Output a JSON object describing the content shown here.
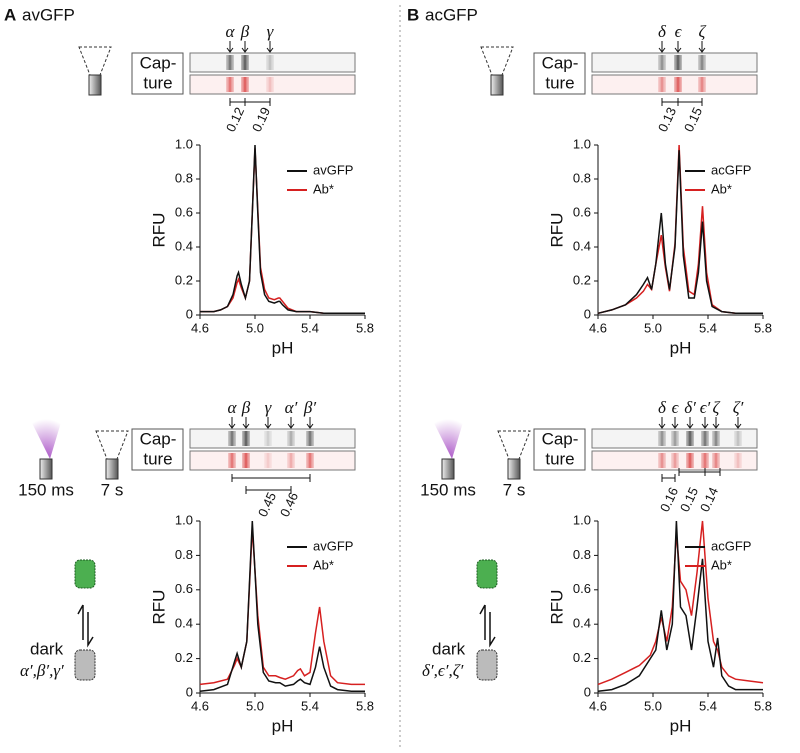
{
  "panels": [
    {
      "label": "A",
      "title": "avGFP",
      "dark_states": "α′,β′,γ′"
    },
    {
      "label": "B",
      "title": "acGFP",
      "dark_states": "δ′,ϵ′,ζ′"
    }
  ],
  "capture_label": [
    "Cap-",
    "ture"
  ],
  "flash_time": "150 ms",
  "capture_time": "7 s",
  "dark_label": "dark",
  "chart_data": [
    {
      "type": "line",
      "xlabel": "pH",
      "ylabel": "RFU",
      "xlim": [
        4.6,
        5.8
      ],
      "xticks": [
        4.6,
        {
          "value": 5,
          "label": "5.0"
        },
        5.4,
        5.8
      ],
      "ylim": [
        0,
        1
      ],
      "yticks": [
        0,
        0.2,
        0.4,
        0.6,
        0.8,
        {
          "value": 1,
          "label": "1.0"
        }
      ],
      "peaks": [
        "α",
        "β",
        "γ"
      ],
      "separations": [
        "0.12",
        "0.19"
      ],
      "x": [
        4.6,
        4.7,
        4.75,
        4.8,
        4.84,
        4.87,
        4.88,
        4.9,
        4.93,
        4.96,
        4.98,
        5.0,
        5.02,
        5.04,
        5.07,
        5.1,
        5.14,
        5.17,
        5.18,
        5.2,
        5.24,
        5.3,
        5.4,
        5.5,
        5.6,
        5.7,
        5.8
      ],
      "series": [
        {
          "name": "avGFP",
          "color": "#111111",
          "values": [
            0.02,
            0.02,
            0.03,
            0.05,
            0.12,
            0.23,
            0.25,
            0.18,
            0.1,
            0.2,
            0.6,
            1.0,
            0.6,
            0.25,
            0.12,
            0.08,
            0.07,
            0.08,
            0.08,
            0.06,
            0.03,
            0.02,
            0.02,
            0.01,
            0.01,
            0.01,
            0.01
          ]
        },
        {
          "name": "Ab*",
          "color": "#d62020",
          "values": [
            0.02,
            0.02,
            0.03,
            0.05,
            0.1,
            0.19,
            0.21,
            0.16,
            0.1,
            0.2,
            0.6,
            0.98,
            0.62,
            0.28,
            0.15,
            0.1,
            0.09,
            0.1,
            0.1,
            0.08,
            0.04,
            0.02,
            0.02,
            0.01,
            0.01,
            0.01,
            0.01
          ]
        }
      ]
    },
    {
      "type": "line",
      "xlabel": "pH",
      "ylabel": "RFU",
      "xlim": [
        4.6,
        5.8
      ],
      "xticks": [
        4.6,
        {
          "value": 5,
          "label": "5.0"
        },
        5.4,
        5.8
      ],
      "ylim": [
        0,
        1
      ],
      "yticks": [
        0,
        0.2,
        0.4,
        0.6,
        0.8,
        {
          "value": 1,
          "label": "1.0"
        }
      ],
      "peaks": [
        "δ",
        "ϵ",
        "ζ"
      ],
      "separations": [
        "0.13",
        "0.15"
      ],
      "x": [
        4.6,
        4.7,
        4.8,
        4.88,
        4.93,
        4.96,
        4.99,
        5.02,
        5.06,
        5.09,
        5.12,
        5.16,
        5.19,
        5.22,
        5.26,
        5.3,
        5.33,
        5.36,
        5.39,
        5.43,
        5.5,
        5.6,
        5.7,
        5.8
      ],
      "series": [
        {
          "name": "acGFP",
          "color": "#111111",
          "values": [
            0.01,
            0.03,
            0.06,
            0.12,
            0.18,
            0.22,
            0.15,
            0.3,
            0.6,
            0.3,
            0.15,
            0.4,
            0.97,
            0.35,
            0.1,
            0.1,
            0.25,
            0.55,
            0.2,
            0.05,
            0.02,
            0.01,
            0.01,
            0.01
          ]
        },
        {
          "name": "Ab*",
          "color": "#d62020",
          "values": [
            0.01,
            0.03,
            0.06,
            0.1,
            0.14,
            0.18,
            0.15,
            0.3,
            0.47,
            0.28,
            0.14,
            0.42,
            1.0,
            0.4,
            0.14,
            0.12,
            0.3,
            0.64,
            0.25,
            0.06,
            0.02,
            0.01,
            0.01,
            0.01
          ]
        }
      ]
    },
    {
      "type": "line",
      "xlabel": "pH",
      "ylabel": "RFU",
      "xlim": [
        4.6,
        5.8
      ],
      "xticks": [
        4.6,
        {
          "value": 5,
          "label": "5.0"
        },
        5.4,
        5.8
      ],
      "ylim": [
        0,
        1
      ],
      "yticks": [
        0,
        0.2,
        0.4,
        0.6,
        0.8,
        {
          "value": 1,
          "label": "1.0"
        }
      ],
      "peaks": [
        "α",
        "β",
        "γ",
        "α′",
        "β′"
      ],
      "separations": [
        "0.45",
        "0.46"
      ],
      "x": [
        4.6,
        4.7,
        4.8,
        4.85,
        4.87,
        4.9,
        4.94,
        4.98,
        5.02,
        5.06,
        5.1,
        5.15,
        5.18,
        5.22,
        5.28,
        5.31,
        5.33,
        5.36,
        5.4,
        5.44,
        5.47,
        5.5,
        5.55,
        5.6,
        5.7,
        5.8
      ],
      "series": [
        {
          "name": "avGFP",
          "color": "#111111",
          "values": [
            0.01,
            0.02,
            0.05,
            0.18,
            0.23,
            0.15,
            0.3,
            1.0,
            0.4,
            0.12,
            0.07,
            0.06,
            0.06,
            0.04,
            0.05,
            0.07,
            0.08,
            0.06,
            0.05,
            0.15,
            0.27,
            0.15,
            0.04,
            0.02,
            0.01,
            0.01
          ]
        },
        {
          "name": "Ab*",
          "color": "#d62020",
          "values": [
            0.05,
            0.06,
            0.08,
            0.16,
            0.2,
            0.15,
            0.3,
            0.96,
            0.45,
            0.15,
            0.1,
            0.1,
            0.09,
            0.08,
            0.1,
            0.13,
            0.14,
            0.1,
            0.12,
            0.35,
            0.5,
            0.3,
            0.1,
            0.06,
            0.05,
            0.05
          ]
        }
      ]
    },
    {
      "type": "line",
      "xlabel": "pH",
      "ylabel": "RFU",
      "xlim": [
        4.6,
        5.8
      ],
      "xticks": [
        4.6,
        {
          "value": 5,
          "label": "5.0"
        },
        5.4,
        5.8
      ],
      "ylim": [
        0,
        1
      ],
      "yticks": [
        0,
        0.2,
        0.4,
        0.6,
        0.8,
        {
          "value": 1,
          "label": "1.0"
        }
      ],
      "peaks": [
        "δ",
        "ϵ",
        "δ′",
        "ϵ′",
        "ζ",
        "ζ′"
      ],
      "separations": [
        "0.16",
        "0.15",
        "0.14"
      ],
      "x": [
        4.6,
        4.7,
        4.8,
        4.9,
        4.98,
        5.02,
        5.06,
        5.1,
        5.14,
        5.17,
        5.2,
        5.24,
        5.28,
        5.32,
        5.36,
        5.4,
        5.44,
        5.47,
        5.5,
        5.55,
        5.6,
        5.7,
        5.8
      ],
      "series": [
        {
          "name": "acGFP",
          "color": "#111111",
          "values": [
            0.01,
            0.02,
            0.05,
            0.1,
            0.2,
            0.25,
            0.48,
            0.25,
            0.4,
            1.0,
            0.5,
            0.45,
            0.25,
            0.5,
            0.78,
            0.3,
            0.15,
            0.32,
            0.1,
            0.04,
            0.02,
            0.02,
            0.02
          ]
        },
        {
          "name": "Ab*",
          "color": "#d62020",
          "values": [
            0.05,
            0.08,
            0.12,
            0.16,
            0.22,
            0.3,
            0.44,
            0.3,
            0.5,
            0.93,
            0.65,
            0.6,
            0.45,
            0.7,
            1.0,
            0.55,
            0.3,
            0.25,
            0.15,
            0.1,
            0.08,
            0.07,
            0.06
          ]
        }
      ]
    }
  ]
}
